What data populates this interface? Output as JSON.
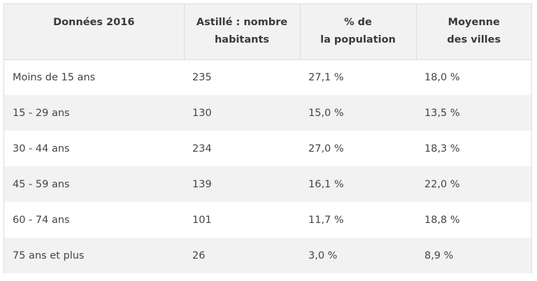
{
  "table": {
    "headers": [
      {
        "lines": [
          "Données 2016"
        ]
      },
      {
        "lines": [
          "Astillé : nombre",
          "habitants"
        ]
      },
      {
        "lines": [
          "% de",
          "la population"
        ]
      },
      {
        "lines": [
          "Moyenne",
          "des villes"
        ]
      }
    ],
    "rows": [
      [
        "Moins de 15 ans",
        "235",
        "27,1 %",
        "18,0 %"
      ],
      [
        "15 - 29 ans",
        "130",
        "15,0 %",
        "13,5 %"
      ],
      [
        "30 - 44 ans",
        "234",
        "27,0 %",
        "18,3 %"
      ],
      [
        "45 - 59 ans",
        "139",
        "16,1 %",
        "22,0 %"
      ],
      [
        "60 - 74 ans",
        "101",
        "11,7 %",
        "18,8 %"
      ],
      [
        "75 ans et plus",
        "26",
        "3,0 %",
        "8,9 %"
      ]
    ]
  }
}
